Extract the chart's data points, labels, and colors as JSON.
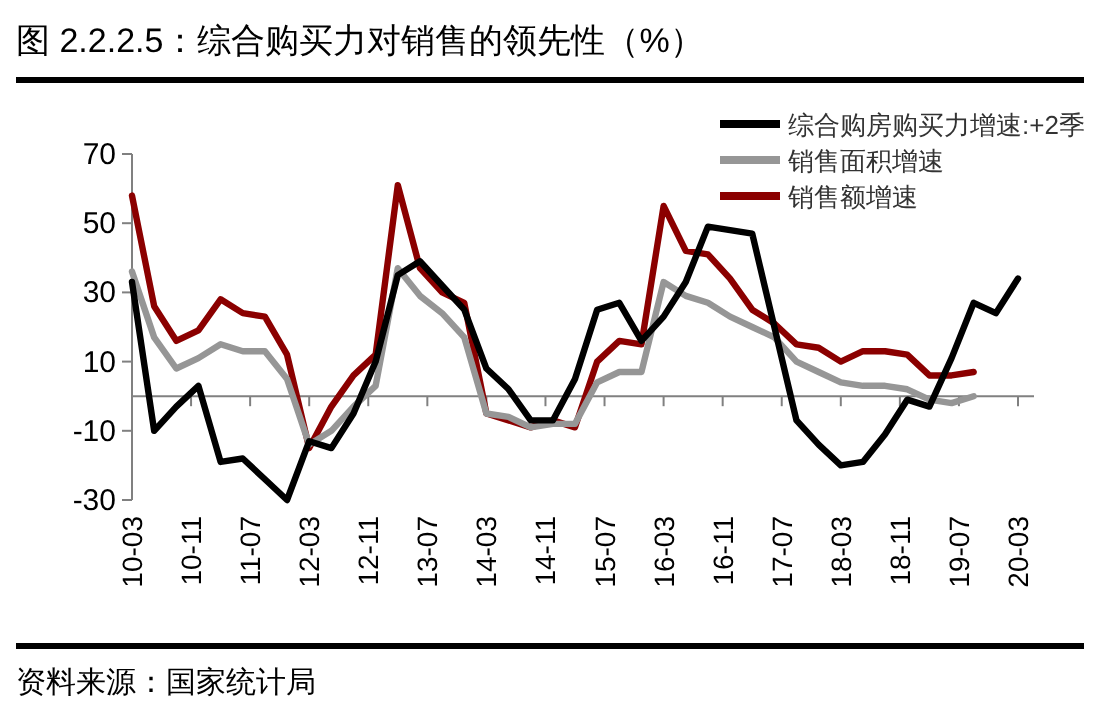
{
  "chart_data": {
    "type": "line",
    "title": "图 2.2.2.5：综合购买力对销售的领先性（%）",
    "annotations": [
      "资料来源：国家统计局"
    ],
    "x": [
      "2010-03",
      "2010-06",
      "2010-09",
      "2010-12",
      "2011-03",
      "2011-06",
      "2011-09",
      "2011-12",
      "2012-03",
      "2012-06",
      "2012-09",
      "2012-12",
      "2013-03",
      "2013-06",
      "2013-09",
      "2013-12",
      "2014-03",
      "2014-06",
      "2014-09",
      "2014-12",
      "2015-03",
      "2015-06",
      "2015-09",
      "2015-12",
      "2016-03",
      "2016-06",
      "2016-09",
      "2016-12",
      "2017-03",
      "2017-06",
      "2017-09",
      "2017-12",
      "2018-03",
      "2018-06",
      "2018-09",
      "2018-12",
      "2019-03",
      "2019-06",
      "2019-09",
      "2019-12",
      "2020-03"
    ],
    "series": [
      {
        "name": "综合购房购买力增速:+2季",
        "color": "#000000",
        "values": [
          33,
          -10,
          -3,
          3,
          -19,
          -18,
          -24,
          -30,
          -13,
          -15,
          -5,
          10,
          35,
          39,
          32,
          25,
          8,
          2,
          -7,
          -7,
          5,
          25,
          27,
          16,
          23,
          33,
          49,
          48,
          47,
          20,
          -7,
          -14,
          -20,
          -19,
          -11,
          -1,
          -3,
          11,
          27,
          24,
          34
        ]
      },
      {
        "name": "销售面积增速",
        "color": "#969696",
        "values": [
          36,
          17,
          8,
          11,
          15,
          13,
          13,
          5,
          -14,
          -10,
          -3,
          3,
          37,
          29,
          24,
          17,
          -5,
          -6,
          -9,
          -8,
          -8,
          4,
          7,
          7,
          33,
          29,
          27,
          23,
          20,
          17,
          10,
          7,
          4,
          3,
          3,
          2,
          -1,
          -2,
          0,
          null,
          null
        ]
      },
      {
        "name": "销售额增速",
        "color": "#8b0000",
        "values": [
          58,
          26,
          16,
          19,
          28,
          24,
          23,
          12,
          -15,
          -3,
          6,
          12,
          61,
          37,
          30,
          27,
          -5,
          -7,
          -9,
          -7,
          -9,
          10,
          16,
          15,
          55,
          42,
          41,
          34,
          25,
          21,
          15,
          14,
          10,
          13,
          13,
          12,
          6,
          6,
          7,
          null,
          null
        ]
      }
    ],
    "xlim": [
      "2010-03",
      "2020-03"
    ],
    "xticks": [
      {
        "value": "2010-03",
        "label": "10-03"
      },
      {
        "value": "2010-11",
        "label": "10-11"
      },
      {
        "value": "2011-07",
        "label": "11-07"
      },
      {
        "value": "2012-03",
        "label": "12-03"
      },
      {
        "value": "2012-11",
        "label": "12-11"
      },
      {
        "value": "2013-07",
        "label": "13-07"
      },
      {
        "value": "2014-03",
        "label": "14-03"
      },
      {
        "value": "2014-11",
        "label": "14-11"
      },
      {
        "value": "2015-07",
        "label": "15-07"
      },
      {
        "value": "2016-03",
        "label": "16-03"
      },
      {
        "value": "2016-11",
        "label": "16-11"
      },
      {
        "value": "2017-07",
        "label": "17-07"
      },
      {
        "value": "2018-03",
        "label": "18-03"
      },
      {
        "value": "2018-11",
        "label": "18-11"
      },
      {
        "value": "2019-07",
        "label": "19-07"
      },
      {
        "value": "2020-03",
        "label": "20-03"
      }
    ],
    "ylim": [
      -30,
      70
    ],
    "yticks": [
      -30,
      -10,
      10,
      30,
      50,
      70
    ],
    "grid": false,
    "legend": "top right",
    "line_style": "solid",
    "marker": "none"
  }
}
